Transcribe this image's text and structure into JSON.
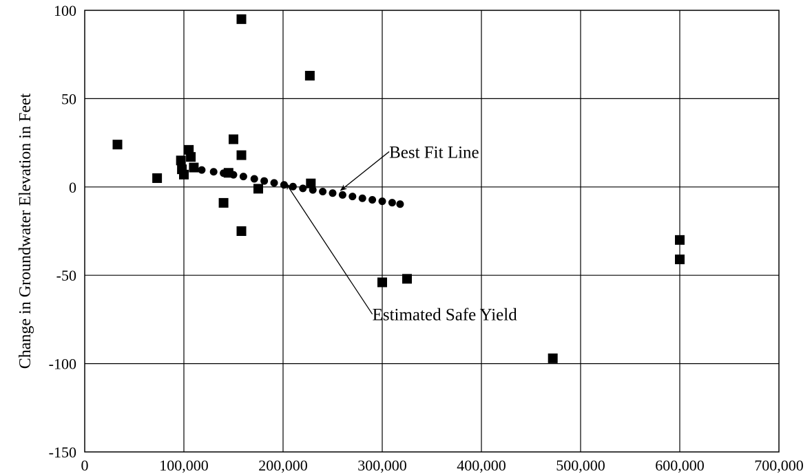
{
  "chart_data": {
    "type": "scatter",
    "title": "",
    "xlabel": "",
    "ylabel": "Change in Groundwater Elevation in Feet",
    "xlim": [
      0,
      700000
    ],
    "ylim": [
      -150,
      100
    ],
    "x_ticks": [
      0,
      100000,
      200000,
      300000,
      400000,
      500000,
      600000,
      700000
    ],
    "x_tick_labels": [
      "0",
      "100,000",
      "200,000",
      "300,000",
      "400,000",
      "500,000",
      "600,000",
      "700,000"
    ],
    "y_ticks": [
      100,
      50,
      0,
      -50,
      -100,
      -150
    ],
    "y_tick_labels": [
      "100",
      "50",
      "0",
      "-50",
      "-100",
      "-150"
    ],
    "grid": true,
    "legend": "none",
    "series": [
      {
        "marker": "square",
        "color": "#000000",
        "points": [
          [
            33000,
            24
          ],
          [
            73000,
            5
          ],
          [
            97000,
            15
          ],
          [
            98000,
            10
          ],
          [
            100000,
            7
          ],
          [
            105000,
            21
          ],
          [
            107000,
            17
          ],
          [
            110000,
            11
          ],
          [
            140000,
            -9
          ],
          [
            145000,
            8
          ],
          [
            150000,
            27
          ],
          [
            158000,
            95
          ],
          [
            158000,
            18
          ],
          [
            158000,
            -25
          ],
          [
            175000,
            -1
          ],
          [
            227000,
            63
          ],
          [
            228000,
            2
          ],
          [
            300000,
            -54
          ],
          [
            325000,
            -52
          ],
          [
            472000,
            -97
          ],
          [
            600000,
            -30
          ],
          [
            600000,
            -41
          ]
        ]
      },
      {
        "marker": "circle",
        "color": "#000000",
        "points": [
          [
            110000,
            10.5
          ],
          [
            118000,
            9.6
          ],
          [
            130000,
            8.6
          ],
          [
            140000,
            7.8
          ],
          [
            150000,
            6.9
          ],
          [
            160000,
            5.9
          ],
          [
            171000,
            4.6
          ],
          [
            181000,
            3.4
          ],
          [
            191000,
            2.3
          ],
          [
            201000,
            1.2
          ],
          [
            210000,
            0.2
          ],
          [
            220000,
            -0.8
          ],
          [
            230000,
            -1.7
          ],
          [
            240000,
            -2.6
          ],
          [
            250000,
            -3.5
          ],
          [
            260000,
            -4.5
          ],
          [
            270000,
            -5.4
          ],
          [
            280000,
            -6.4
          ],
          [
            290000,
            -7.3
          ],
          [
            300000,
            -8.1
          ],
          [
            310000,
            -8.9
          ],
          [
            318000,
            -9.7
          ]
        ]
      }
    ],
    "annotations": [
      {
        "text": "Best Fit Line",
        "x": 307000,
        "y": 20,
        "arrow_to": [
          258000,
          -2
        ]
      },
      {
        "text": "Estimated Safe Yield",
        "x": 290000,
        "y": -72,
        "arrow_to": [
          203000,
          2
        ]
      }
    ]
  }
}
